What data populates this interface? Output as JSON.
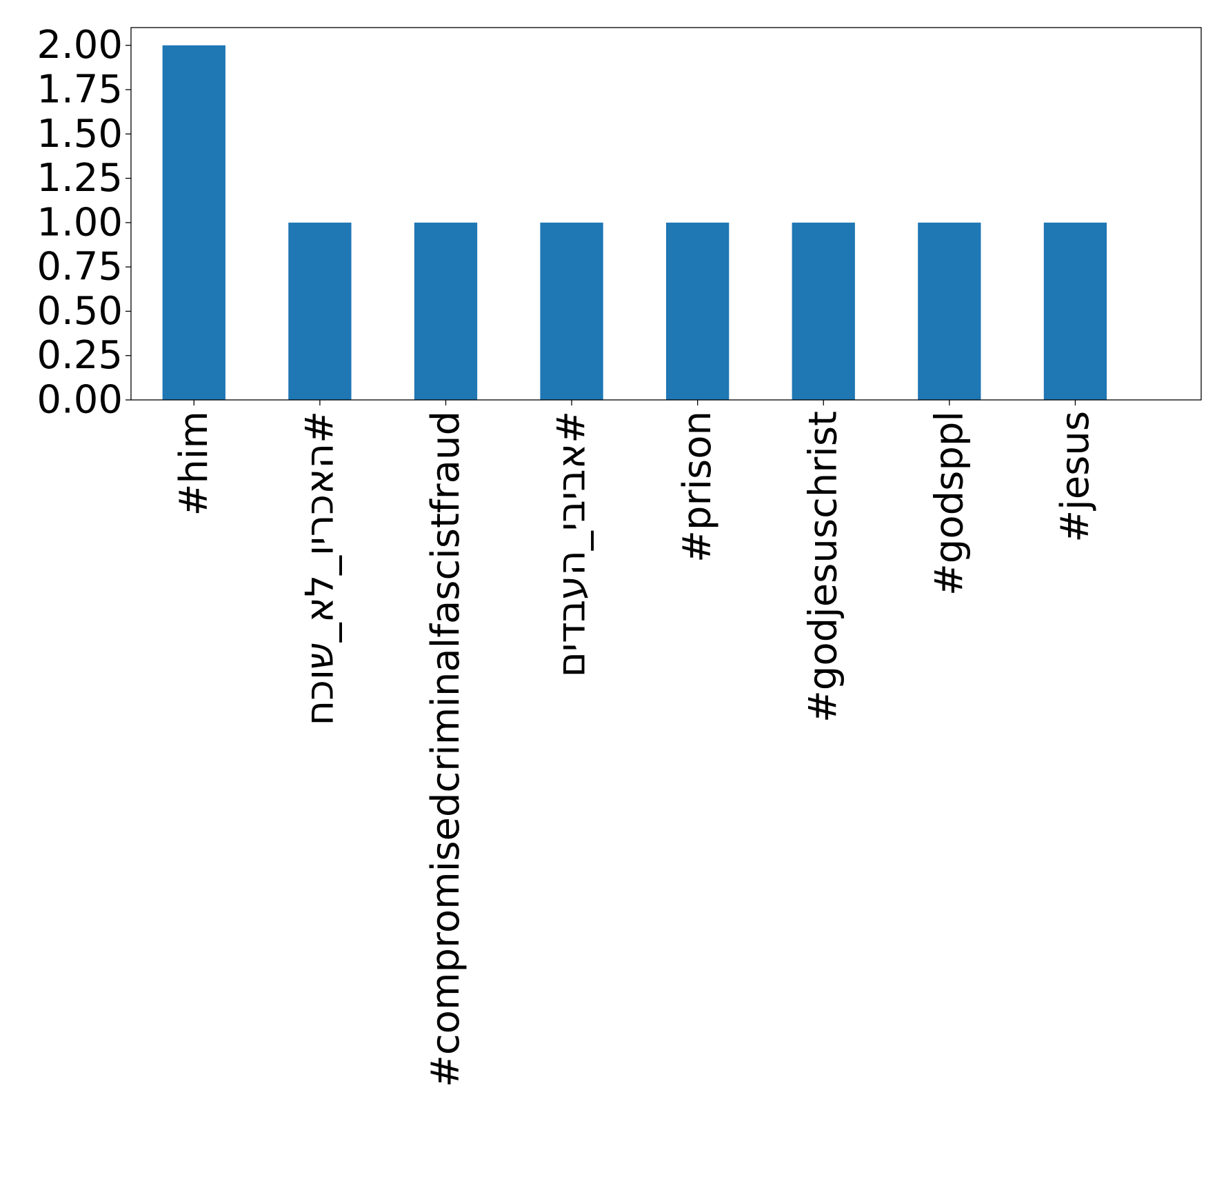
{
  "chart_data": {
    "type": "bar",
    "title": "",
    "xlabel": "",
    "ylabel": "",
    "categories": [
      "#him",
      "#האכריו_לא_שוכח",
      "#compromisedcriminalfascistfraud",
      "#אביבי_העבדים",
      "#prison",
      "#godjesuschrist",
      "#godsppl",
      "#jesus"
    ],
    "values": [
      2,
      1,
      1,
      1,
      1,
      1,
      1,
      1
    ],
    "ylim": [
      0,
      2.1
    ],
    "yticks": [
      "0.00",
      "0.25",
      "0.50",
      "0.75",
      "1.00",
      "1.25",
      "1.50",
      "1.75",
      "2.00"
    ],
    "ytick_values": [
      0,
      0.25,
      0.5,
      0.75,
      1.0,
      1.25,
      1.5,
      1.75,
      2.0
    ],
    "bar_color": "#1f77b4",
    "grid": false,
    "legend": "none"
  }
}
